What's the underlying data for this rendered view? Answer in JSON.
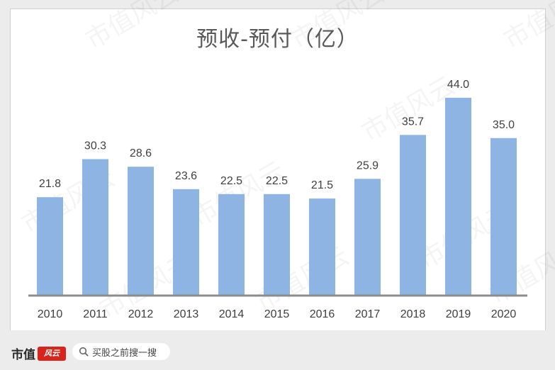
{
  "chart_data": {
    "type": "bar",
    "title": "预收-预付（亿）",
    "categories": [
      "2010",
      "2011",
      "2012",
      "2013",
      "2014",
      "2015",
      "2016",
      "2017",
      "2018",
      "2019",
      "2020"
    ],
    "values": [
      21.8,
      30.3,
      28.6,
      23.6,
      22.5,
      22.5,
      21.5,
      25.9,
      35.7,
      44.0,
      35.0
    ],
    "value_labels": [
      "21.8",
      "30.3",
      "28.6",
      "23.6",
      "22.5",
      "22.5",
      "21.5",
      "25.9",
      "35.7",
      "44.0",
      "35.0"
    ],
    "ylim": [
      0,
      50
    ],
    "grid": false,
    "legend": "none",
    "bar_color": "#8db4e2",
    "axis_color": "#8c8c8c"
  },
  "watermark": "市值风云",
  "footer": {
    "brand": "市值",
    "brand_mark": "风云",
    "search_placeholder": "买股之前搜一搜"
  }
}
